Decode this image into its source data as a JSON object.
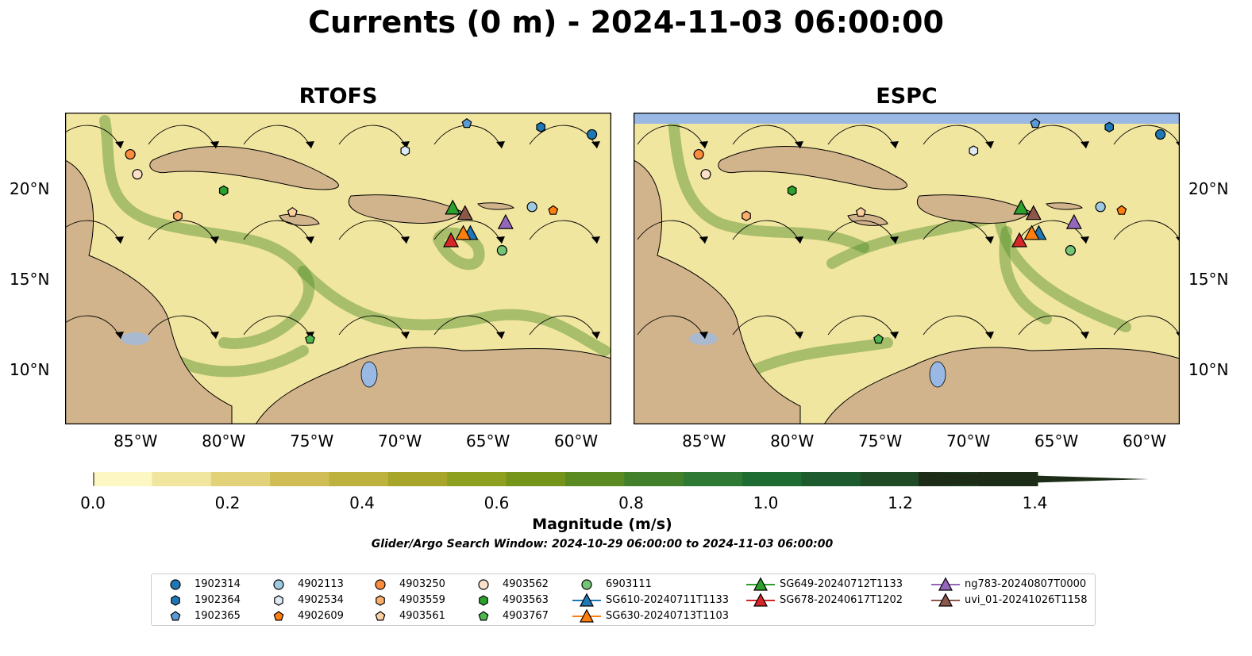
{
  "title": "Currents (0 m) - 2024-11-03 06:00:00",
  "panels": [
    {
      "title": "RTOFS"
    },
    {
      "title": "ESPC"
    }
  ],
  "axes": {
    "lon_ticks": [
      "85°W",
      "80°W",
      "75°W",
      "70°W",
      "65°W",
      "60°W"
    ],
    "lat_ticks": [
      "20°N",
      "15°N",
      "10°N"
    ]
  },
  "colorbar": {
    "label": "Magnitude (m/s)",
    "tick_labels": [
      "0.0",
      "0.2",
      "0.4",
      "0.6",
      "0.8",
      "1.0",
      "1.2",
      "1.4"
    ],
    "colors": [
      "#fdf7c3",
      "#f1e6a0",
      "#e2d27a",
      "#d1bd55",
      "#bdb23d",
      "#a8a52b",
      "#8ea020",
      "#74941a",
      "#5c8a22",
      "#43802c",
      "#2e7a35",
      "#1f6c33",
      "#1d5a2d",
      "#1f4a25",
      "#1e3a1d",
      "#1c2c16"
    ]
  },
  "search_window_note": "Glider/Argo Search Window: 2024-10-29 06:00:00 to 2024-11-03 06:00:00",
  "legend": [
    {
      "label": "1902314",
      "marker": "circle",
      "color": "#1f77b4"
    },
    {
      "label": "1902364",
      "marker": "hexagon",
      "color": "#1f77b4"
    },
    {
      "label": "1902365",
      "marker": "pentagon",
      "color": "#5b9bd5"
    },
    {
      "label": "4902113",
      "marker": "circle",
      "color": "#9ecae1"
    },
    {
      "label": "4902534",
      "marker": "hexagon",
      "color": "#deebf7"
    },
    {
      "label": "4902609",
      "marker": "pentagon",
      "color": "#ff7f0e"
    },
    {
      "label": "4903250",
      "marker": "circle",
      "color": "#fd8d3c"
    },
    {
      "label": "4903559",
      "marker": "hexagon",
      "color": "#fdae6b"
    },
    {
      "label": "4903561",
      "marker": "pentagon",
      "color": "#fdd0a2"
    },
    {
      "label": "4903562",
      "marker": "circle",
      "color": "#fde0c9"
    },
    {
      "label": "4903563",
      "marker": "hexagon",
      "color": "#2ca02c"
    },
    {
      "label": "4903767",
      "marker": "pentagon",
      "color": "#4db84d"
    },
    {
      "label": "6903111",
      "marker": "circle",
      "color": "#74c476"
    },
    {
      "label": "SG610-20240711T1133",
      "marker": "triangle-line",
      "color": "#1f77b4"
    },
    {
      "label": "SG630-20240713T1103",
      "marker": "triangle-line",
      "color": "#ff7f0e"
    },
    {
      "label": "SG649-20240712T1133",
      "marker": "triangle-line",
      "color": "#2ca02c"
    },
    {
      "label": "SG678-20240617T1202",
      "marker": "triangle-line",
      "color": "#d62728"
    },
    {
      "label": "ng783-20240807T0000",
      "marker": "triangle-line",
      "color": "#9467bd"
    },
    {
      "label": "uvi_01-20241026T1158",
      "marker": "triangle-line",
      "color": "#8c564b"
    }
  ],
  "map": {
    "lon_range": [
      -89,
      -58
    ],
    "lat_range": [
      7,
      24.2
    ],
    "ocean_color": "#f1e6a0",
    "land_color": "#d2b48c",
    "masked_color": "#99b9e4",
    "strong_current_color": "#4f8d2a",
    "stations": [
      {
        "id": "1902314",
        "lon": -59.1,
        "lat": 23.0
      },
      {
        "id": "1902364",
        "lon": -62.0,
        "lat": 23.4
      },
      {
        "id": "1902365",
        "lon": -66.2,
        "lat": 23.6
      },
      {
        "id": "4902113",
        "lon": -62.5,
        "lat": 19.0
      },
      {
        "id": "4902534",
        "lon": -69.7,
        "lat": 22.1
      },
      {
        "id": "4902609",
        "lon": -61.3,
        "lat": 18.8
      },
      {
        "id": "4903250",
        "lon": -85.3,
        "lat": 21.9
      },
      {
        "id": "4903559",
        "lon": -82.6,
        "lat": 18.5
      },
      {
        "id": "4903561",
        "lon": -76.1,
        "lat": 18.7
      },
      {
        "id": "4903562",
        "lon": -84.9,
        "lat": 20.8
      },
      {
        "id": "4903563",
        "lon": -80.0,
        "lat": 19.9
      },
      {
        "id": "4903767",
        "lon": -75.1,
        "lat": 11.7
      },
      {
        "id": "6903111",
        "lon": -64.2,
        "lat": 16.6
      },
      {
        "id": "SG610-20240711T1133",
        "lon": -66.0,
        "lat": 17.5
      },
      {
        "id": "SG630-20240713T1103",
        "lon": -66.4,
        "lat": 17.5
      },
      {
        "id": "SG649-20240712T1133",
        "lon": -67.0,
        "lat": 18.9
      },
      {
        "id": "SG678-20240617T1202",
        "lon": -67.1,
        "lat": 17.1
      },
      {
        "id": "ng783-20240807T0000",
        "lon": -64.0,
        "lat": 18.1
      },
      {
        "id": "uvi_01-20241026T1158",
        "lon": -66.3,
        "lat": 18.6
      }
    ]
  }
}
